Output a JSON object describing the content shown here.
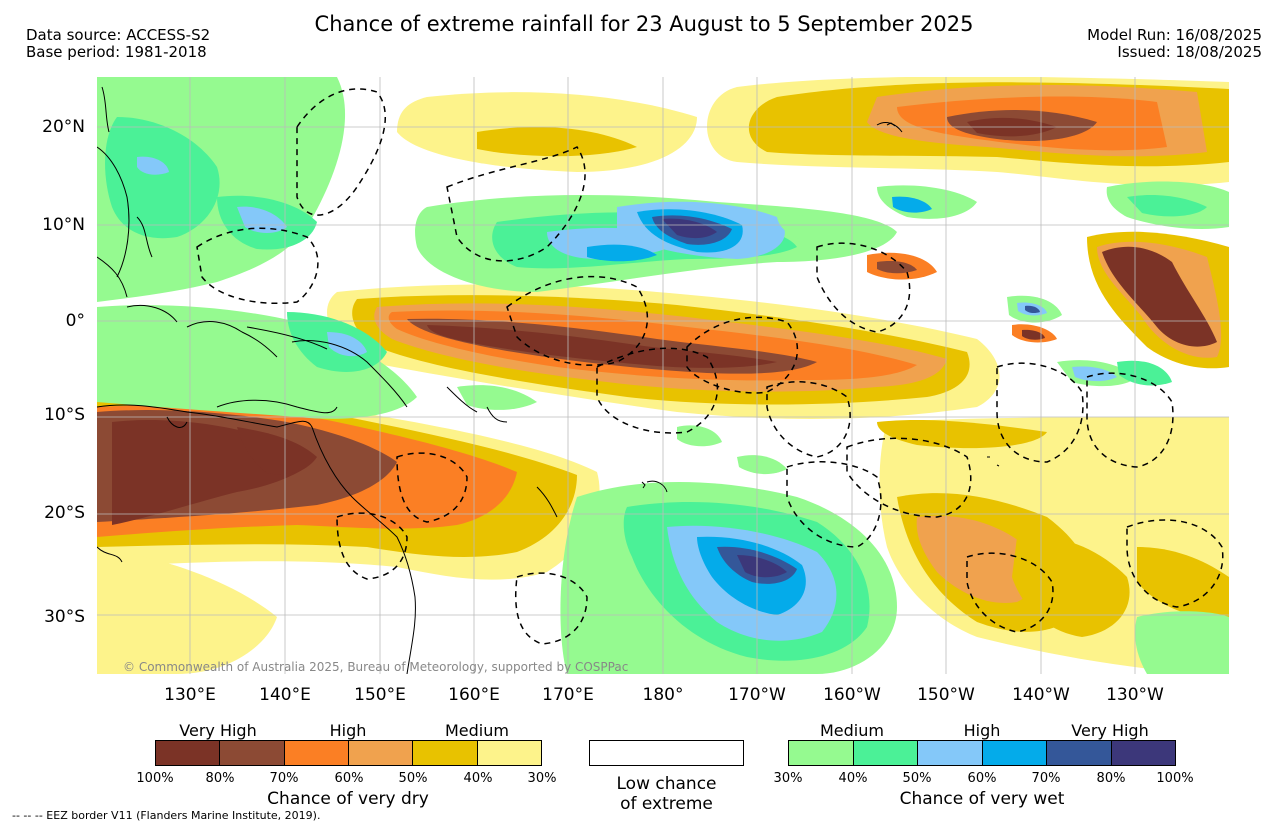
{
  "title": "Chance of extreme rainfall for 23 August to 5 September 2025",
  "data_source": "Data source: ACCESS-S2",
  "base_period": "Base period: 1981-2018",
  "model_run": "Model Run: 16/08/2025",
  "issued": "Issued: 18/08/2025",
  "lat_labels": [
    "20°N",
    "10°N",
    "0°",
    "10°S",
    "20°S",
    "30°S"
  ],
  "lon_labels": [
    "130°E",
    "140°E",
    "150°E",
    "160°E",
    "170°E",
    "180°",
    "170°W",
    "160°W",
    "150°W",
    "140°W",
    "130°W"
  ],
  "copyright": "© Commonwealth of Australia 2025, Bureau of Meteorology, supported by COSPPac",
  "colors": {
    "dry": [
      "#7b3326",
      "#8c4a34",
      "#fb7f24",
      "#f0a24e",
      "#e8c200",
      "#fdf38b"
    ],
    "wet": [
      "#95fa90",
      "#4bf197",
      "#84c8f9",
      "#04abea",
      "#345799",
      "#3c377a"
    ],
    "grid": "#bbbbbb",
    "coast": "#000000"
  },
  "legend": {
    "dry": {
      "categories": [
        "Very High",
        "High",
        "Medium"
      ],
      "ticks": [
        "100%",
        "80%",
        "70%",
        "60%",
        "50%",
        "40%",
        "30%"
      ],
      "title": "Chance of very dry"
    },
    "low": {
      "line1": "Low chance",
      "line2": "of extreme"
    },
    "wet": {
      "categories": [
        "Medium",
        "High",
        "Very High"
      ],
      "ticks": [
        "30%",
        "40%",
        "50%",
        "60%",
        "70%",
        "80%",
        "100%"
      ],
      "title": "Chance of very wet"
    }
  },
  "eez_note": "--  --  -- EEZ border V11 (Flanders Marine Institute, 2019)."
}
